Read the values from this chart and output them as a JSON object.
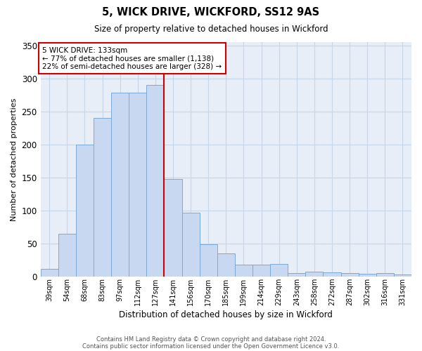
{
  "title1": "5, WICK DRIVE, WICKFORD, SS12 9AS",
  "title2": "Size of property relative to detached houses in Wickford",
  "xlabel": "Distribution of detached houses by size in Wickford",
  "ylabel": "Number of detached properties",
  "categories": [
    "39sqm",
    "54sqm",
    "68sqm",
    "83sqm",
    "97sqm",
    "112sqm",
    "127sqm",
    "141sqm",
    "156sqm",
    "170sqm",
    "185sqm",
    "199sqm",
    "214sqm",
    "229sqm",
    "243sqm",
    "258sqm",
    "272sqm",
    "287sqm",
    "302sqm",
    "316sqm",
    "331sqm"
  ],
  "values": [
    12,
    65,
    200,
    240,
    278,
    278,
    290,
    148,
    97,
    49,
    35,
    18,
    18,
    19,
    5,
    8,
    7,
    6,
    4,
    5,
    3
  ],
  "bar_color": "#c8d8f0",
  "bar_edge_color": "#7aaad8",
  "vline_color": "#cc0000",
  "annotation_line1": "5 WICK DRIVE: 133sqm",
  "annotation_line2": "← 77% of detached houses are smaller (1,138)",
  "annotation_line3": "22% of semi-detached houses are larger (328) →",
  "annotation_box_color": "#ffffff",
  "annotation_box_edge": "#cc0000",
  "grid_color": "#c8d4e8",
  "background_color": "#e8eef8",
  "ylim": [
    0,
    355
  ],
  "yticks": [
    0,
    50,
    100,
    150,
    200,
    250,
    300,
    350
  ],
  "footer1": "Contains HM Land Registry data © Crown copyright and database right 2024.",
  "footer2": "Contains public sector information licensed under the Open Government Licence v3.0."
}
